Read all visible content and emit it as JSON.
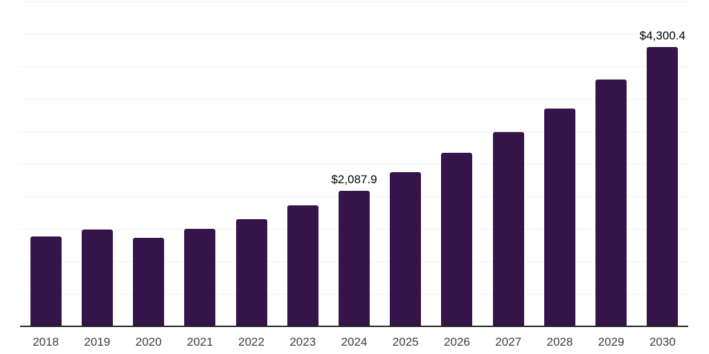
{
  "chart_data": {
    "type": "bar",
    "title": "",
    "xlabel": "",
    "ylabel": "",
    "categories": [
      "2018",
      "2019",
      "2020",
      "2021",
      "2022",
      "2023",
      "2024",
      "2025",
      "2026",
      "2027",
      "2028",
      "2029",
      "2030"
    ],
    "values": [
      1380,
      1490,
      1365,
      1495,
      1650,
      1860,
      2087.9,
      2370,
      2665,
      2985,
      3350,
      3800,
      4300.4
    ],
    "data_labels": {
      "2024": "$2,087.9",
      "2030": "$4,300.4"
    },
    "ylim": [
      0,
      5000
    ],
    "gridline_step": 500,
    "grid": true,
    "legend": false,
    "colors": {
      "bar": "#351449",
      "grid": "#f2f2f2",
      "axis": "#222222",
      "data_label": "#000000",
      "tick_label": "#3c3c3c",
      "background": "#ffffff"
    }
  },
  "layout_hints": {
    "axis_note": "no y-axis tick labels shown; values only on 2024 and 2030 bars"
  }
}
